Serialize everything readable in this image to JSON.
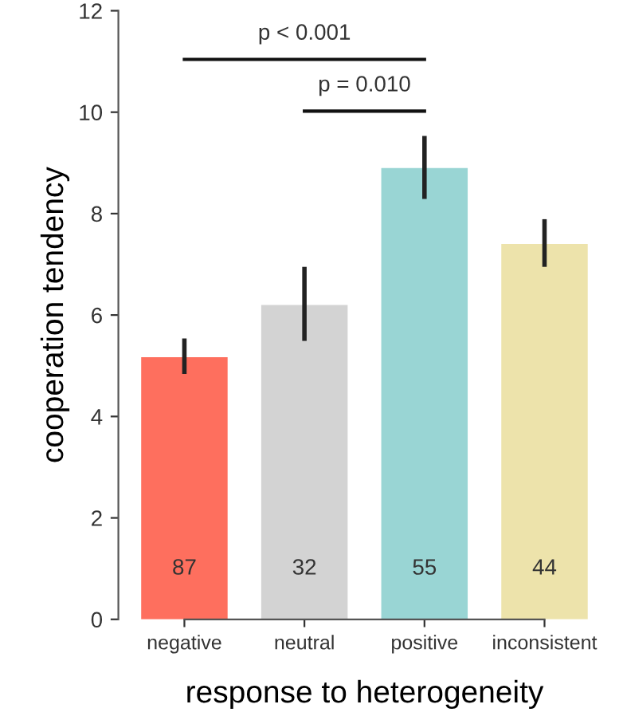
{
  "chart_data": {
    "type": "bar",
    "xlabel": "response to heterogeneity",
    "ylabel": "cooperation tendency",
    "categories": [
      "negative",
      "neutral",
      "positive",
      "inconsistent"
    ],
    "values": [
      5.17,
      6.2,
      8.9,
      7.4
    ],
    "colors": [
      "#fe6f5e",
      "#d3d3d3",
      "#99d5d4",
      "#ede3ab"
    ],
    "errors": [
      [
        4.84,
        5.54
      ],
      [
        5.49,
        6.95
      ],
      [
        8.29,
        9.53
      ],
      [
        6.95,
        7.89
      ]
    ],
    "ylim": [
      0,
      12
    ],
    "yticks": [
      0,
      2,
      4,
      6,
      8,
      10,
      12
    ],
    "grid": false,
    "legend": false,
    "annotations": [
      "87",
      "32",
      "55",
      "44",
      "p < 0.001",
      "p = 0.010"
    ]
  }
}
